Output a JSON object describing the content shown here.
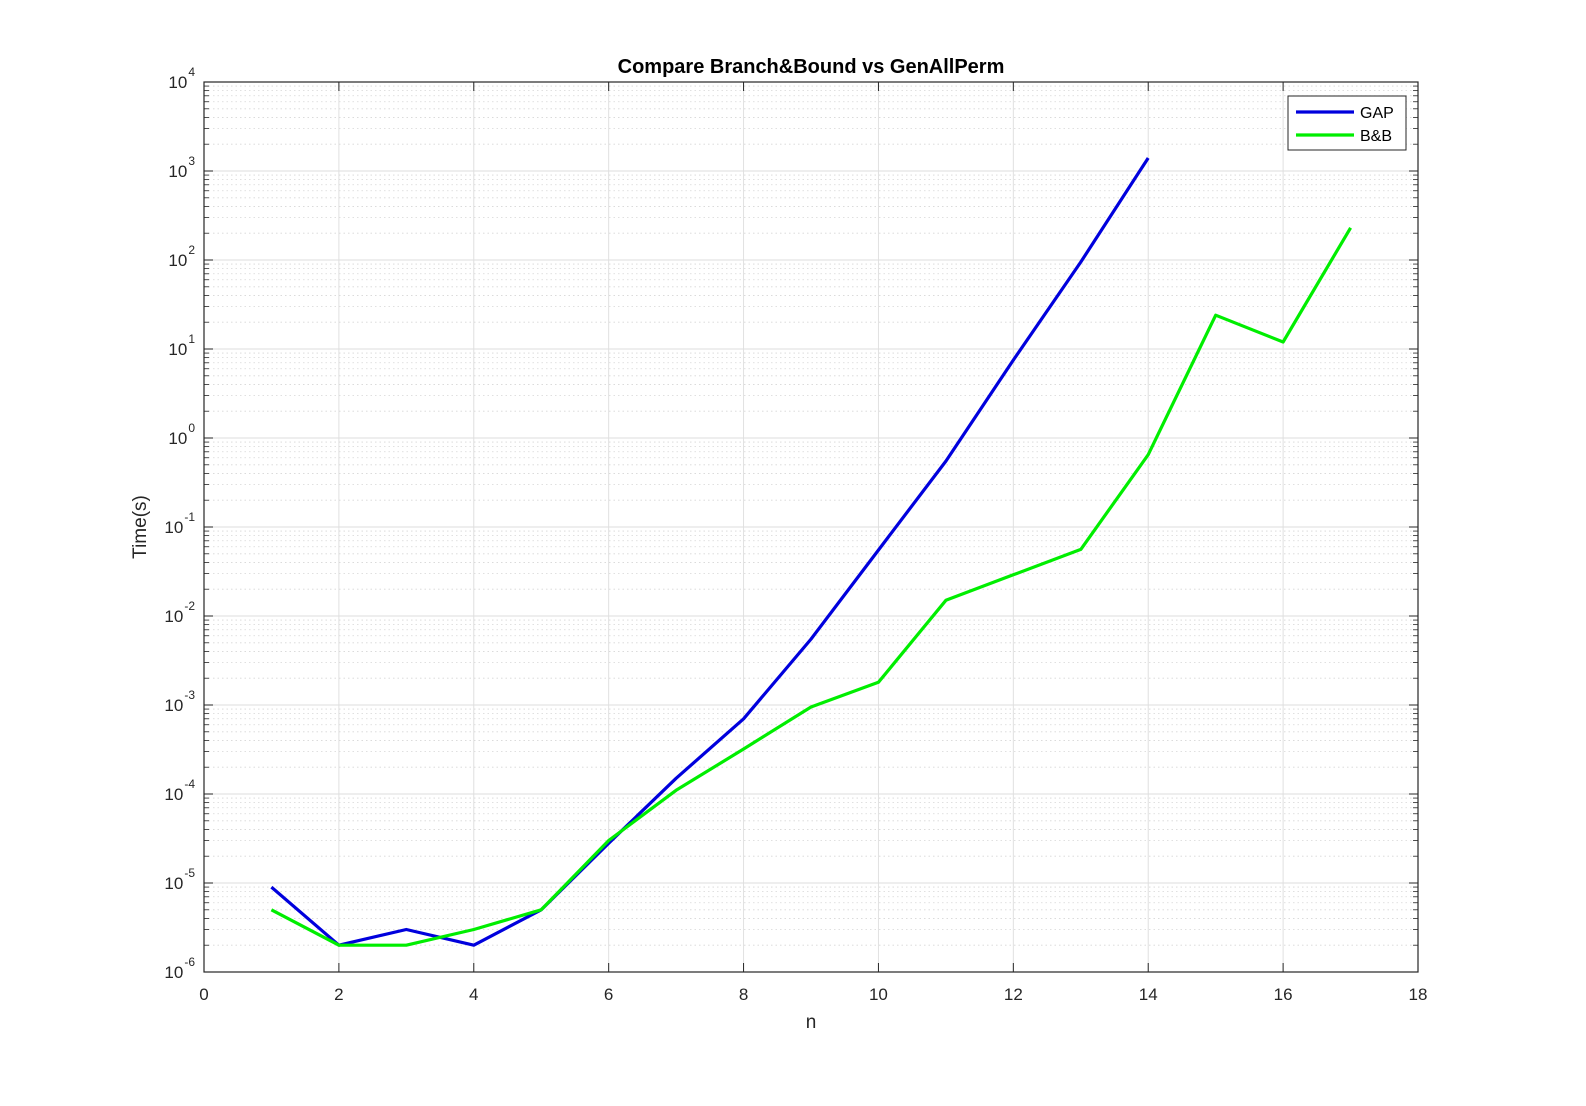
{
  "chart_data": {
    "type": "line",
    "title": "Compare Branch&Bound vs GenAllPerm",
    "xlabel": "n",
    "ylabel": "Time(s)",
    "xlim": [
      0,
      18
    ],
    "ylim": [
      1e-06,
      10000
    ],
    "yscale": "log",
    "x_ticks": [
      0,
      2,
      4,
      6,
      8,
      10,
      12,
      14,
      16,
      18
    ],
    "x_tick_labels": [
      "0",
      "2",
      "4",
      "6",
      "8",
      "10",
      "12",
      "14",
      "16",
      "18"
    ],
    "y_ticks": [
      {
        "value": 1e-06,
        "base": "10",
        "exp": "-6"
      },
      {
        "value": 1e-05,
        "base": "10",
        "exp": "-5"
      },
      {
        "value": 0.0001,
        "base": "10",
        "exp": "-4"
      },
      {
        "value": 0.001,
        "base": "10",
        "exp": "-3"
      },
      {
        "value": 0.01,
        "base": "10",
        "exp": "-2"
      },
      {
        "value": 0.1,
        "base": "10",
        "exp": "-1"
      },
      {
        "value": 1,
        "base": "10",
        "exp": "0"
      },
      {
        "value": 10,
        "base": "10",
        "exp": "1"
      },
      {
        "value": 100,
        "base": "10",
        "exp": "2"
      },
      {
        "value": 1000,
        "base": "10",
        "exp": "3"
      },
      {
        "value": 10000,
        "base": "10",
        "exp": "4"
      }
    ],
    "grid": true,
    "minor_grid": true,
    "legend_position": "top-right",
    "series": [
      {
        "name": "GAP",
        "color": "#0000dd",
        "x": [
          1,
          2,
          3,
          4,
          5,
          6,
          7,
          8,
          9,
          10,
          11,
          12,
          13,
          14
        ],
        "y": [
          9e-06,
          2e-06,
          3e-06,
          2e-06,
          5e-06,
          2.8e-05,
          0.00015,
          0.0007,
          0.0055,
          0.055,
          0.55,
          7.5,
          95,
          1400
        ]
      },
      {
        "name": "B&B",
        "color": "#00ee00",
        "x": [
          1,
          2,
          3,
          4,
          5,
          6,
          7,
          8,
          9,
          10,
          11,
          12,
          13,
          14,
          15,
          16,
          17
        ],
        "y": [
          5e-06,
          2e-06,
          2e-06,
          3e-06,
          5e-06,
          3e-05,
          0.00011,
          0.00032,
          0.00095,
          0.0018,
          0.015,
          0.029,
          0.056,
          0.65,
          24,
          12,
          230
        ]
      }
    ]
  }
}
